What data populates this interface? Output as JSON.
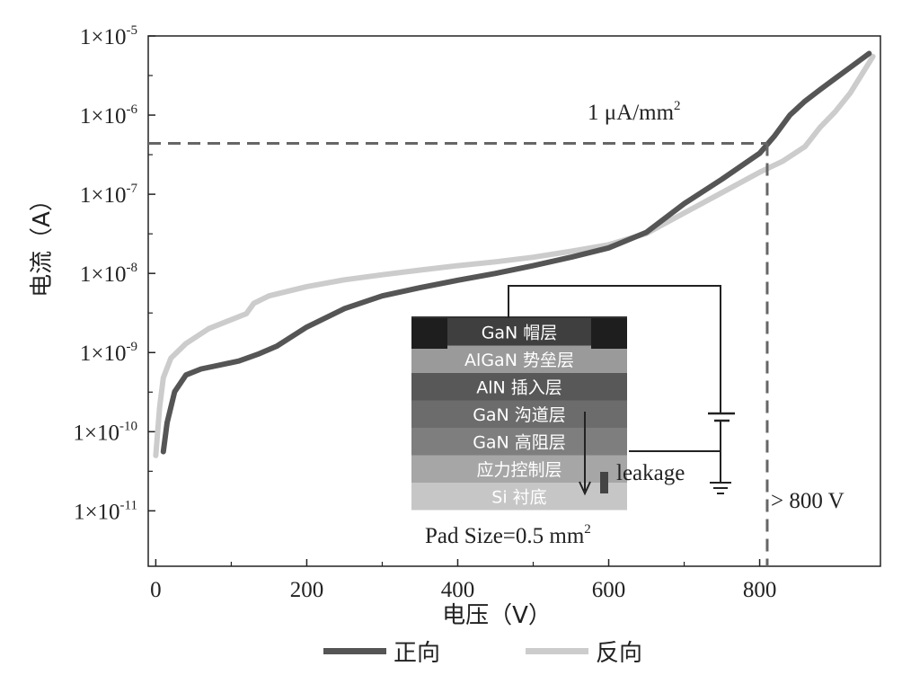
{
  "chart_data": {
    "type": "line",
    "xlabel": "电压（V）",
    "ylabel": "电流（A）",
    "x_ticks": [
      0,
      200,
      400,
      600,
      800
    ],
    "xlim": [
      -10,
      960
    ],
    "ylim": [
      -11.7,
      -5
    ],
    "y_scale": "log",
    "y_ticks": [
      {
        "exp": -5,
        "label": "1×10",
        "sup": "-5"
      },
      {
        "exp": -6,
        "label": "1×10",
        "sup": "-6"
      },
      {
        "exp": -7,
        "label": "1×10",
        "sup": "-7"
      },
      {
        "exp": -8,
        "label": "1×10",
        "sup": "-8"
      },
      {
        "exp": -9,
        "label": "1×10",
        "sup": "-9"
      },
      {
        "exp": -10,
        "label": "1×10",
        "sup": "-10"
      },
      {
        "exp": -11,
        "label": "1×10",
        "sup": "-11"
      }
    ],
    "series": [
      {
        "name": "正向",
        "color": "#555555",
        "x": [
          10,
          15,
          25,
          40,
          60,
          80,
          110,
          135,
          160,
          200,
          250,
          300,
          350,
          400,
          450,
          500,
          550,
          600,
          650,
          700,
          750,
          800,
          820,
          840,
          860,
          880,
          900,
          920,
          945
        ],
        "y": [
          5.6e-11,
          1.3e-10,
          3.2e-10,
          5.2e-10,
          6.2e-10,
          6.8e-10,
          7.8e-10,
          9.5e-10,
          1.2e-09,
          2.1e-09,
          3.6e-09,
          5.2e-09,
          6.6e-09,
          8.2e-09,
          1e-08,
          1.25e-08,
          1.6e-08,
          2.1e-08,
          3.3e-08,
          7.6e-08,
          1.55e-07,
          3.3e-07,
          5.5e-07,
          1e-06,
          1.5e-06,
          2.1e-06,
          2.9e-06,
          4e-06,
          6e-06
        ]
      },
      {
        "name": "反向",
        "color": "#cccccc",
        "x": [
          0,
          5,
          10,
          20,
          40,
          70,
          100,
          120,
          130,
          150,
          200,
          250,
          300,
          350,
          400,
          450,
          500,
          550,
          600,
          650,
          700,
          750,
          800,
          830,
          860,
          880,
          900,
          920,
          950
        ],
        "y": [
          5e-11,
          2e-10,
          4.8e-10,
          8.5e-10,
          1.3e-09,
          2e-09,
          2.6e-09,
          3.1e-09,
          4.2e-09,
          5.2e-09,
          6.8e-09,
          8.3e-09,
          9.6e-09,
          1.1e-08,
          1.25e-08,
          1.4e-08,
          1.6e-08,
          1.9e-08,
          2.3e-08,
          3.2e-08,
          5.8e-08,
          1.05e-07,
          1.9e-07,
          2.6e-07,
          4e-07,
          7e-07,
          1.1e-06,
          1.9e-06,
          5.5e-06
        ]
      }
    ],
    "reference": {
      "current": 4.4e-07,
      "voltage": 810,
      "current_label": "1 μA/mm",
      "current_label_sup": "2",
      "voltage_label": "> 800 V"
    },
    "inset": {
      "layers": [
        {
          "label": "GaN 帽层",
          "color": "#3f3f3f"
        },
        {
          "label": "AlGaN 势垒层",
          "color": "#9a9a9a"
        },
        {
          "label": "AlN 插入层",
          "color": "#585858"
        },
        {
          "label": "GaN 沟道层",
          "color": "#6c6c6c"
        },
        {
          "label": "GaN 高阻层",
          "color": "#7e7e7e"
        },
        {
          "label": "应力控制层",
          "color": "#a6a6a6"
        },
        {
          "label": "Si 衬底",
          "color": "#c6c6c6"
        }
      ],
      "leakage_label": "leakage",
      "pad_label": "Pad Size=0.5 mm",
      "pad_label_sup": "2"
    }
  }
}
